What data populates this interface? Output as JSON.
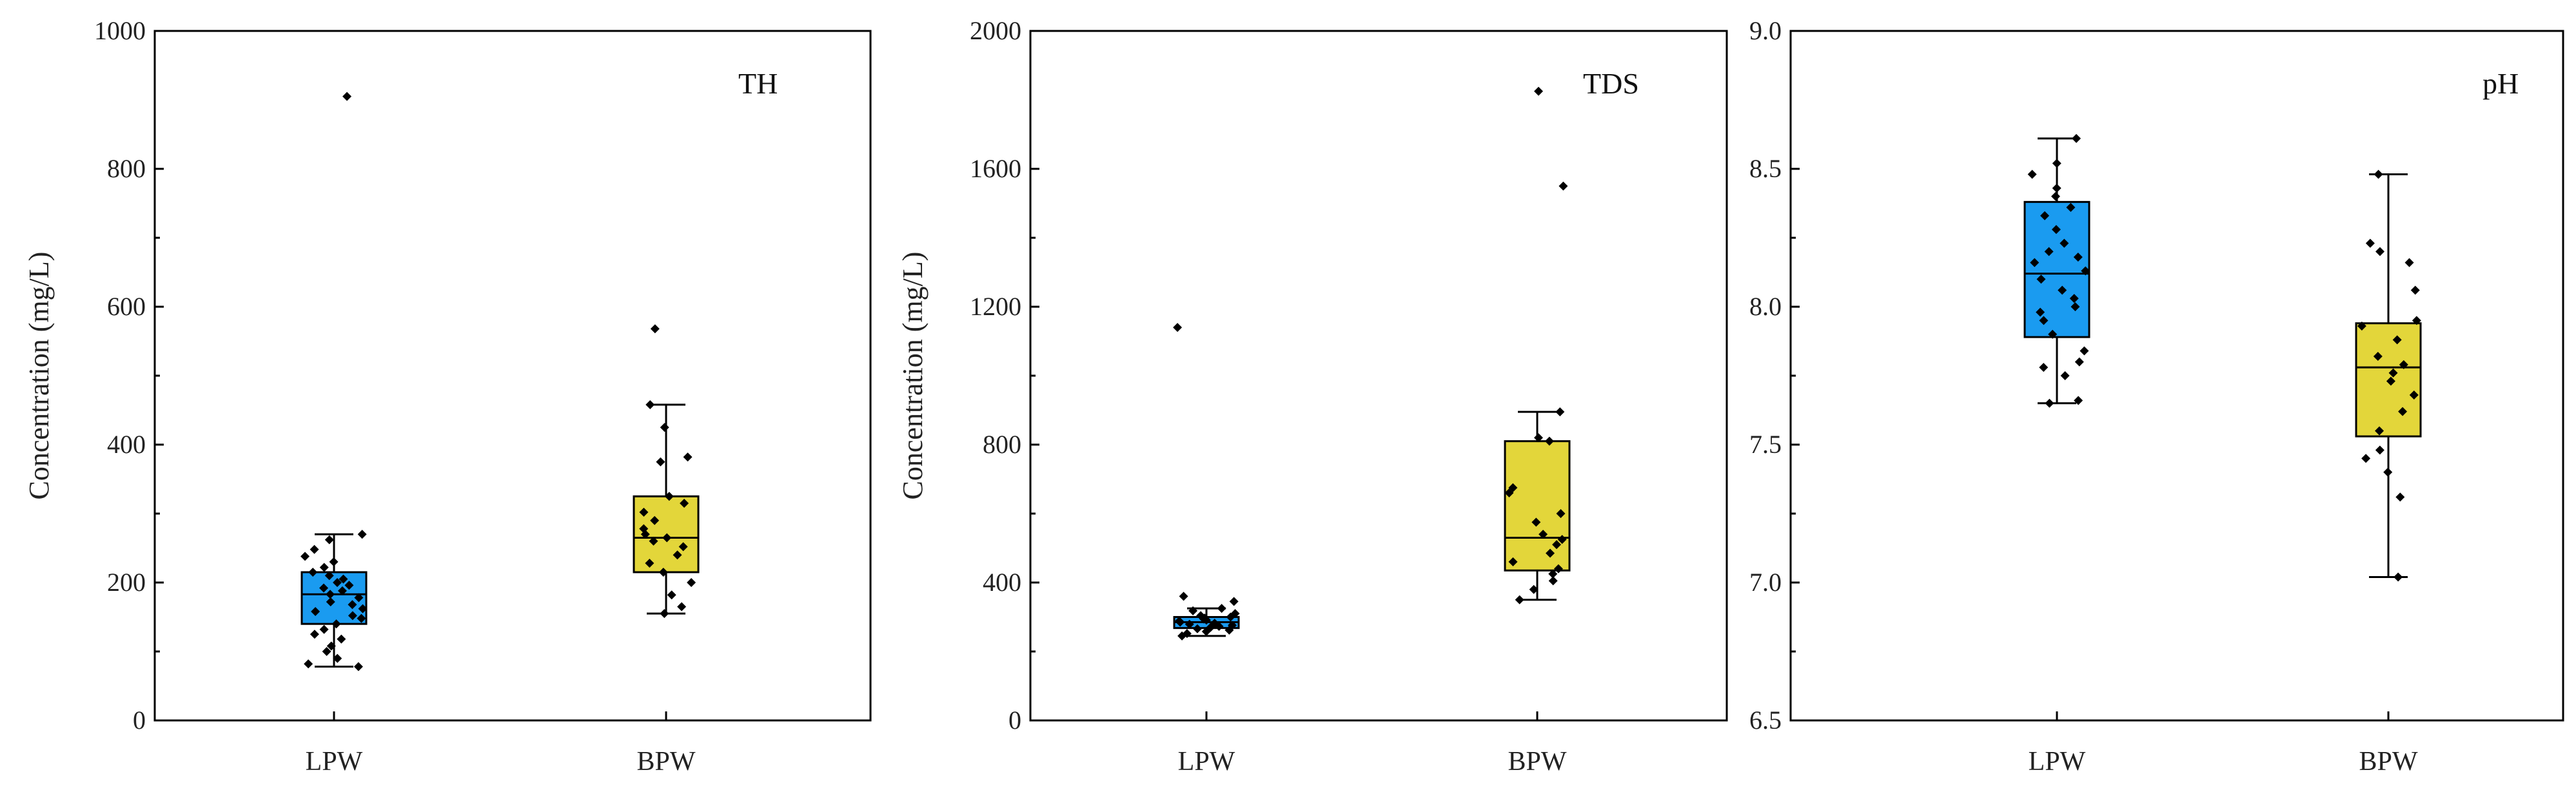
{
  "chart_data": [
    {
      "type": "box",
      "title": "TH",
      "ylabel": "Concentration (mg/L)",
      "ylim": [
        0,
        1000
      ],
      "yticks": [
        "0",
        "200",
        "400",
        "600",
        "800",
        "1000"
      ],
      "categories": [
        "LPW",
        "BPW"
      ],
      "colors": [
        "#1a9bf0",
        "#e3d63a"
      ],
      "boxes": [
        {
          "category": "LPW",
          "min": 78,
          "q1": 140,
          "median": 183,
          "q3": 215,
          "max": 270,
          "points": [
            78,
            82,
            90,
            100,
            108,
            118,
            125,
            132,
            140,
            148,
            152,
            158,
            162,
            168,
            172,
            178,
            183,
            188,
            192,
            196,
            200,
            205,
            210,
            215,
            222,
            230,
            238,
            248,
            262,
            270,
            905
          ]
        },
        {
          "category": "BPW",
          "min": 155,
          "q1": 215,
          "median": 265,
          "q3": 325,
          "max": 458,
          "points": [
            155,
            165,
            182,
            200,
            215,
            228,
            240,
            252,
            260,
            265,
            270,
            278,
            290,
            302,
            315,
            325,
            375,
            382,
            425,
            458,
            568
          ]
        }
      ]
    },
    {
      "type": "box",
      "title": "TDS",
      "ylabel": "Concentration (mg/L)",
      "ylim": [
        0,
        2000
      ],
      "yticks": [
        "0",
        "400",
        "800",
        "1200",
        "1600",
        "2000"
      ],
      "categories": [
        "LPW",
        "BPW"
      ],
      "colors": [
        "#1a9bf0",
        "#e3d63a"
      ],
      "boxes": [
        {
          "category": "LPW",
          "min": 245,
          "q1": 268,
          "median": 285,
          "q3": 300,
          "max": 325,
          "points": [
            245,
            252,
            258,
            262,
            266,
            270,
            273,
            276,
            279,
            282,
            285,
            288,
            291,
            294,
            297,
            300,
            304,
            310,
            318,
            325,
            345,
            360,
            1140
          ]
        },
        {
          "category": "BPW",
          "min": 350,
          "q1": 435,
          "median": 530,
          "q3": 810,
          "max": 895,
          "points": [
            350,
            380,
            405,
            425,
            440,
            460,
            485,
            510,
            525,
            540,
            575,
            600,
            660,
            675,
            810,
            820,
            895,
            1550,
            1825
          ]
        }
      ]
    },
    {
      "type": "box",
      "title": "pH",
      "ylabel": "",
      "ylim": [
        6.5,
        9.0
      ],
      "yticks": [
        "6.5",
        "7.0",
        "7.5",
        "8.0",
        "8.5",
        "9.0"
      ],
      "categories": [
        "LPW",
        "BPW"
      ],
      "colors": [
        "#1a9bf0",
        "#e3d63a"
      ],
      "boxes": [
        {
          "category": "LPW",
          "min": 7.65,
          "q1": 7.89,
          "median": 8.12,
          "q3": 8.38,
          "max": 8.61,
          "points": [
            7.65,
            7.66,
            7.75,
            7.78,
            7.8,
            7.84,
            7.9,
            7.95,
            7.98,
            8.0,
            8.03,
            8.06,
            8.1,
            8.13,
            8.16,
            8.18,
            8.2,
            8.23,
            8.28,
            8.33,
            8.36,
            8.4,
            8.43,
            8.48,
            8.52,
            8.61
          ]
        },
        {
          "category": "BPW",
          "min": 7.02,
          "q1": 7.53,
          "median": 7.78,
          "q3": 7.94,
          "max": 8.48,
          "points": [
            7.02,
            7.31,
            7.4,
            7.45,
            7.48,
            7.55,
            7.62,
            7.68,
            7.73,
            7.76,
            7.79,
            7.82,
            7.88,
            7.93,
            7.95,
            8.06,
            8.16,
            8.2,
            8.23,
            8.48
          ]
        }
      ]
    }
  ]
}
